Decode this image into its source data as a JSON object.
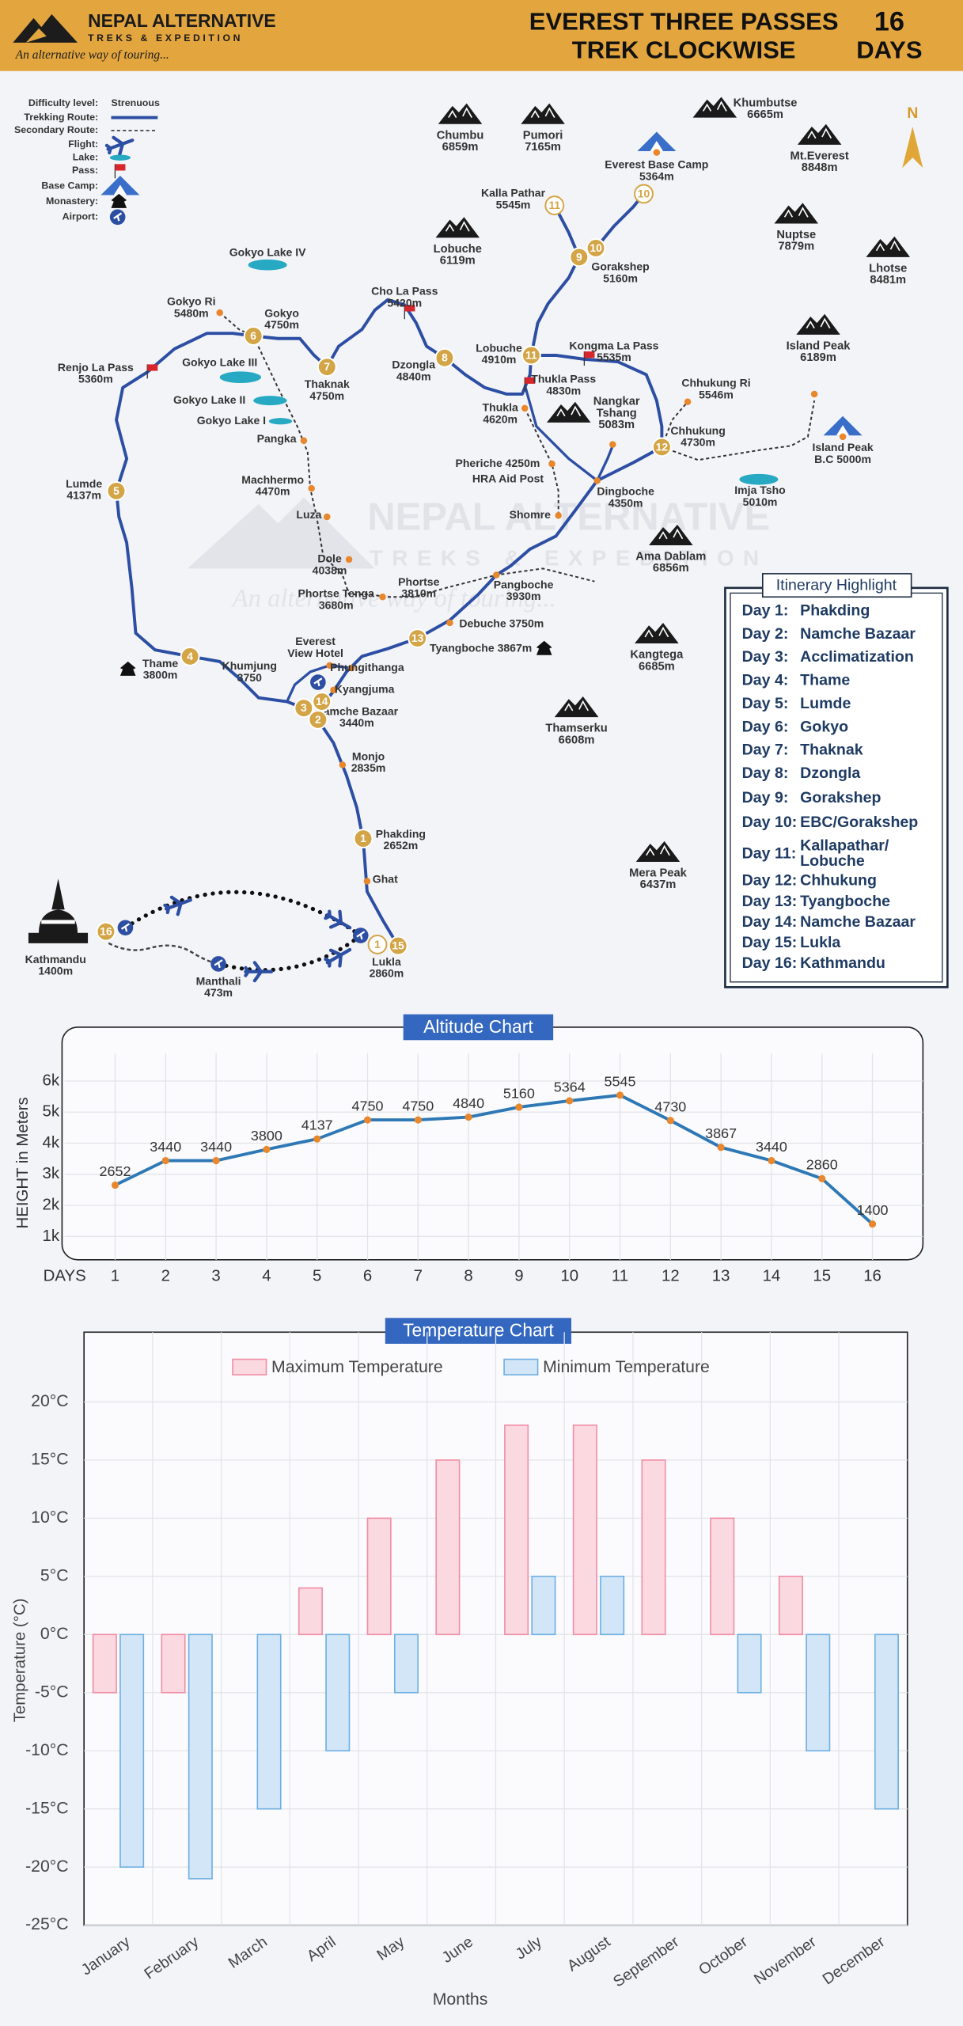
{
  "header": {
    "brand": "NEPAL ALTERNATIVE",
    "brand_sub": "TREKS & EXPEDITION",
    "tagline": "An alternative way of touring...",
    "title_line1": "EVEREST THREE PASSES",
    "title_line2": "TREK CLOCKWISE",
    "days_number": "16",
    "days_label": "DAYS"
  },
  "legend": {
    "difficulty_label": "Difficulty level:",
    "difficulty": "Strenuous",
    "items": [
      "Trekking Route:",
      "Secondary Route:",
      "Flight:",
      "Lake:",
      "Pass:",
      "Base Camp:",
      "Monastery:",
      "Airport:"
    ],
    "north": "N"
  },
  "watermark": {
    "brand": "NEPAL ALTERNATIVE",
    "brand_sub": "TREKS & EXPEDITION",
    "tagline": "An alternative way of touring..."
  },
  "map": {
    "peaks": [
      {
        "lines": [
          "Chumbu",
          "6859m"
        ]
      },
      {
        "lines": [
          "Pumori",
          "7165m"
        ]
      },
      {
        "lines": [
          "Khumbutse",
          "6665m"
        ]
      },
      {
        "lines": [
          "Mt.Everest",
          "8848m"
        ]
      },
      {
        "lines": [
          "Nuptse",
          "7879m"
        ]
      },
      {
        "lines": [
          "Lhotse",
          "8481m"
        ]
      },
      {
        "lines": [
          "Lobuche",
          "6119m"
        ]
      },
      {
        "lines": [
          "Island Peak",
          "6189m"
        ]
      },
      {
        "lines": [
          "Ama Dablam",
          "6856m"
        ]
      },
      {
        "lines": [
          "Kangtega",
          "6685m"
        ]
      },
      {
        "lines": [
          "Thamserku",
          "6608m"
        ]
      },
      {
        "lines": [
          "Mera Peak",
          "6437m"
        ]
      },
      {
        "lines": [
          "Nangkar",
          "Tshang",
          "5083m"
        ]
      }
    ],
    "places": [
      {
        "lines": [
          "Everest Base Camp",
          "5364m"
        ]
      },
      {
        "lines": [
          "Kalla Pathar",
          "5545m"
        ]
      },
      {
        "lines": [
          "Gorakshep",
          "5160m"
        ]
      },
      {
        "lines": [
          "Gokyo Lake IV"
        ]
      },
      {
        "lines": [
          "Cho La Pass",
          "5420m"
        ]
      },
      {
        "lines": [
          "Gokyo Ri",
          "5480m"
        ]
      },
      {
        "lines": [
          "Gokyo",
          "4750m"
        ]
      },
      {
        "lines": [
          "Lobuche",
          "4910m"
        ]
      },
      {
        "lines": [
          "Kongma La Pass",
          "5535m"
        ]
      },
      {
        "lines": [
          "Renjo La Pass",
          "5360m"
        ]
      },
      {
        "lines": [
          "Gokyo Lake III"
        ]
      },
      {
        "lines": [
          "Thaknak",
          "4750m"
        ]
      },
      {
        "lines": [
          "Dzongla",
          "4840m"
        ]
      },
      {
        "lines": [
          "Thukla Pass",
          "4830m"
        ]
      },
      {
        "lines": [
          "Chhukung Ri",
          "5546m"
        ]
      },
      {
        "lines": [
          "Gokyo Lake II"
        ]
      },
      {
        "lines": [
          "Gokyo Lake I"
        ]
      },
      {
        "lines": [
          "Thukla",
          "4620m"
        ]
      },
      {
        "lines": [
          "Chhukung",
          "4730m"
        ]
      },
      {
        "lines": [
          "Island Peak",
          "B.C 5000m"
        ]
      },
      {
        "lines": [
          "Pangka"
        ]
      },
      {
        "lines": [
          "Lumde",
          "4137m"
        ]
      },
      {
        "lines": [
          "Machhermo",
          "4470m"
        ]
      },
      {
        "lines": [
          "Pheriche 4250m"
        ]
      },
      {
        "lines": [
          "HRA Aid Post"
        ]
      },
      {
        "lines": [
          "Imja Tsho",
          "5010m"
        ]
      },
      {
        "lines": [
          "Dingboche",
          "4350m"
        ]
      },
      {
        "lines": [
          "Luza"
        ]
      },
      {
        "lines": [
          "Shomre"
        ]
      },
      {
        "lines": [
          "Dole",
          "4038m"
        ]
      },
      {
        "lines": [
          "Phortse",
          "3810m"
        ]
      },
      {
        "lines": [
          "Pangboche",
          "3930m"
        ]
      },
      {
        "lines": [
          "Phortse Tenga",
          "3680m"
        ]
      },
      {
        "lines": [
          "Debuche 3750m"
        ]
      },
      {
        "lines": [
          "Thame",
          "3800m"
        ]
      },
      {
        "lines": [
          "Khumjung",
          "3750"
        ]
      },
      {
        "lines": [
          "Everest",
          "View Hotel"
        ]
      },
      {
        "lines": [
          "Phungithanga"
        ]
      },
      {
        "lines": [
          "Tyangboche 3867m"
        ]
      },
      {
        "lines": [
          "Kyangjuma"
        ]
      },
      {
        "lines": [
          "Namche Bazaar",
          "3440m"
        ]
      },
      {
        "lines": [
          "Monjo",
          "2835m"
        ]
      },
      {
        "lines": [
          "Phakding",
          "2652m"
        ]
      },
      {
        "lines": [
          "Ghat"
        ]
      },
      {
        "lines": [
          "Kathmandu",
          "1400m"
        ]
      },
      {
        "lines": [
          "Lukla",
          "2860m"
        ]
      },
      {
        "lines": [
          "Manthali",
          "473m"
        ]
      }
    ],
    "badges": [
      "1",
      "2",
      "3",
      "4",
      "5",
      "6",
      "7",
      "8",
      "9",
      "10",
      "10",
      "11",
      "11",
      "12",
      "13",
      "14",
      "15",
      "1",
      "16"
    ]
  },
  "itinerary": {
    "title": "Itinerary Highlight",
    "days": [
      {
        "day": "Day 1:",
        "place": "Phakding"
      },
      {
        "day": "Day 2:",
        "place": "Namche Bazaar"
      },
      {
        "day": "Day 3:",
        "place": "Acclimatization"
      },
      {
        "day": "Day 4:",
        "place": "Thame"
      },
      {
        "day": "Day 5:",
        "place": "Lumde"
      },
      {
        "day": "Day 6:",
        "place": "Gokyo"
      },
      {
        "day": "Day 7:",
        "place": "Thaknak"
      },
      {
        "day": "Day 8:",
        "place": "Dzongla"
      },
      {
        "day": "Day 9:",
        "place": "Gorakshep"
      },
      {
        "day": "Day 10:",
        "place": "EBC/Gorakshep"
      },
      {
        "day": "Day 11:",
        "place": [
          "Kallapathar/",
          "Lobuche"
        ]
      },
      {
        "day": "Day 12:",
        "place": "Chhukung"
      },
      {
        "day": "Day 13:",
        "place": "Tyangboche"
      },
      {
        "day": "Day 14:",
        "place": "Namche Bazaar"
      },
      {
        "day": "Day 15:",
        "place": "Lukla"
      },
      {
        "day": "Day 16:",
        "place": "Kathmandu"
      }
    ]
  },
  "chart_data": [
    {
      "type": "line",
      "title": "Altitude Chart",
      "y_label": "HEIGHT in Meters",
      "x_label": "DAYS",
      "x": [
        1,
        2,
        3,
        4,
        5,
        6,
        7,
        8,
        9,
        10,
        11,
        12,
        13,
        14,
        15,
        16
      ],
      "values": [
        2652,
        3440,
        3440,
        3800,
        4137,
        4750,
        4750,
        4840,
        5160,
        5364,
        5545,
        4730,
        3867,
        3440,
        2860,
        1400
      ],
      "xlim": [
        0,
        17
      ],
      "xticks": [
        1,
        2,
        3,
        4,
        5,
        6,
        7,
        8,
        9,
        10,
        11,
        12,
        13,
        14,
        15,
        16
      ],
      "ylim": [
        250,
        6900
      ],
      "yticks": [
        {
          "value": 1000,
          "label": "1k"
        },
        {
          "value": 2000,
          "label": "2k"
        },
        {
          "value": 3000,
          "label": "3k"
        },
        {
          "value": 4000,
          "label": "4k"
        },
        {
          "value": 5000,
          "label": "5k"
        },
        {
          "value": 6000,
          "label": "6k"
        }
      ],
      "color": "#2e79b5",
      "marker_color": "#e8872b",
      "grid": true
    },
    {
      "type": "bar",
      "title": "Temperature Chart",
      "y_label": "Temperature (°C)",
      "x_label": "Months",
      "categories": [
        "January",
        "February",
        "March",
        "April",
        "May",
        "June",
        "July",
        "August",
        "September",
        "October",
        "November",
        "December"
      ],
      "series": [
        {
          "name": "Maximum Temperature",
          "color": "#fbd9e1",
          "border_color": "#f08ea6",
          "values": [
            -5,
            -5,
            0,
            4,
            10,
            15,
            18,
            18,
            15,
            10,
            5,
            0
          ]
        },
        {
          "name": "Minimum Temperature",
          "color": "#d3e6f7",
          "border_color": "#6fb0e2",
          "values": [
            -20,
            -21,
            -15,
            -10,
            -5,
            0,
            5,
            5,
            0,
            -5,
            -10,
            -15
          ]
        }
      ],
      "ylim": [
        -25,
        26
      ],
      "yticks": [
        {
          "value": -25,
          "label": "-25°C"
        },
        {
          "value": -20,
          "label": "-20°C"
        },
        {
          "value": -15,
          "label": "-15°C"
        },
        {
          "value": -10,
          "label": "-10°C"
        },
        {
          "value": -5,
          "label": "-5°C"
        },
        {
          "value": 0,
          "label": "0°C"
        },
        {
          "value": 5,
          "label": "5°C"
        },
        {
          "value": 10,
          "label": "10°C"
        },
        {
          "value": 15,
          "label": "15°C"
        },
        {
          "value": 20,
          "label": "20°C"
        }
      ],
      "grid": true,
      "legend": "top"
    }
  ]
}
